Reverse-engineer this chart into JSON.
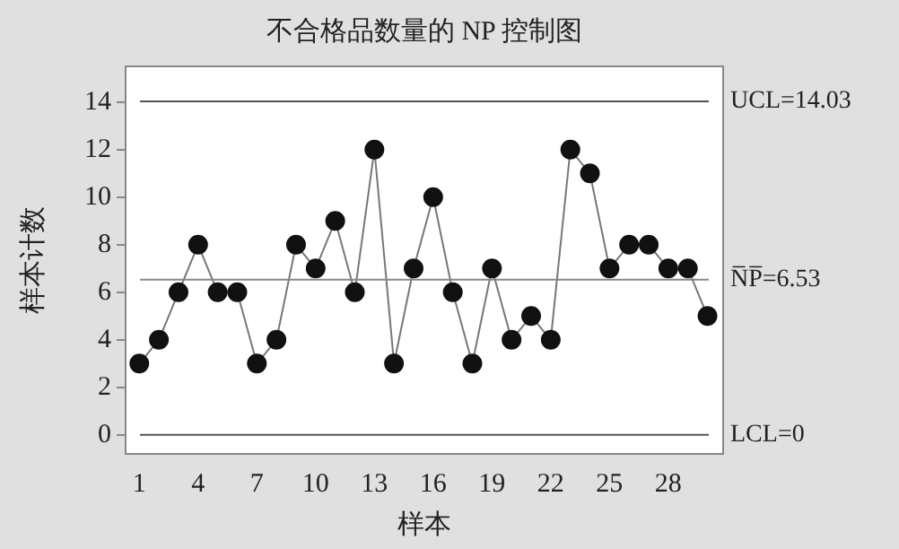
{
  "chart_data": {
    "type": "line",
    "title": "不合格品数量的 NP 控制图",
    "xlabel": "样本",
    "ylabel": "样本计数",
    "x": [
      1,
      2,
      3,
      4,
      5,
      6,
      7,
      8,
      9,
      10,
      11,
      12,
      13,
      14,
      15,
      16,
      17,
      18,
      19,
      20,
      21,
      22,
      23,
      24,
      25,
      26,
      27,
      28,
      29,
      30
    ],
    "values": [
      3,
      4,
      6,
      8,
      6,
      6,
      3,
      4,
      8,
      7,
      9,
      6,
      12,
      3,
      7,
      10,
      6,
      3,
      7,
      4,
      5,
      4,
      12,
      11,
      7,
      8,
      8,
      7,
      7,
      5
    ],
    "color": "#111111",
    "marker": "circle",
    "line_style": "solid",
    "xlim": [
      0.3,
      30.8
    ],
    "xticks": [
      1,
      4,
      7,
      10,
      13,
      16,
      19,
      22,
      25,
      28
    ],
    "ylim": [
      -0.8,
      15.5
    ],
    "yticks": [
      0,
      2,
      4,
      6,
      8,
      10,
      12,
      14
    ],
    "ref_lines": [
      {
        "axis": "y",
        "value": 14.03,
        "label": "UCL=14.03",
        "color": "#555555"
      },
      {
        "axis": "y",
        "value": 6.53,
        "label": "N̅P̅=6.53",
        "color": "#888888"
      },
      {
        "axis": "y",
        "value": 0,
        "label": "LCL=0",
        "color": "#555555"
      }
    ],
    "grid": false,
    "legend": false
  }
}
